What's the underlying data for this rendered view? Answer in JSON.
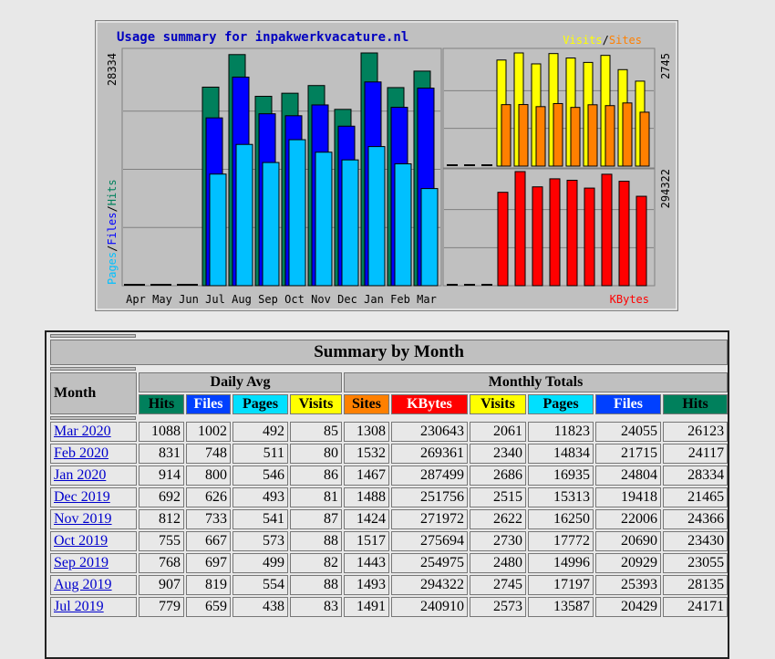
{
  "graph": {
    "title": "Usage summary for inpakwerkvacature.nl",
    "left_axis_label": "28334",
    "right_top_axis_label": "2745",
    "right_bottom_axis_label": "294322",
    "legend_left": [
      "Pages",
      "/",
      "Files",
      "/",
      "Hits"
    ],
    "legend_top_right": [
      "Visits",
      "/",
      "Sites"
    ],
    "legend_bottom_right": "KBytes",
    "colors": {
      "hits": "#00805c",
      "files": "#0000ff",
      "pages": "#00c0ff",
      "visits": "#ffff00",
      "sites": "#ff8000",
      "kbytes": "#ff0000",
      "bg": "#c0c0c0",
      "frame": "#808080"
    }
  },
  "chart_data": {
    "type": "bar",
    "categories": [
      "Apr",
      "May",
      "Jun",
      "Jul",
      "Aug",
      "Sep",
      "Oct",
      "Nov",
      "Dec",
      "Jan",
      "Feb",
      "Mar"
    ],
    "series": [
      {
        "name": "Hits",
        "values": [
          0,
          0,
          0,
          24171,
          28135,
          23055,
          23430,
          24366,
          21465,
          28334,
          24117,
          26123
        ]
      },
      {
        "name": "Files",
        "values": [
          0,
          0,
          0,
          20429,
          25393,
          20929,
          20690,
          22006,
          19418,
          24804,
          21715,
          24055
        ]
      },
      {
        "name": "Pages",
        "values": [
          0,
          0,
          0,
          13587,
          17197,
          14996,
          17772,
          16250,
          15313,
          16935,
          14834,
          11823
        ]
      },
      {
        "name": "Visits",
        "values": [
          0,
          0,
          0,
          2573,
          2745,
          2480,
          2730,
          2622,
          2515,
          2686,
          2340,
          2061
        ]
      },
      {
        "name": "Sites",
        "values": [
          0,
          0,
          0,
          1491,
          1493,
          1443,
          1517,
          1424,
          1488,
          1467,
          1532,
          1308
        ]
      },
      {
        "name": "KBytes",
        "values": [
          0,
          0,
          0,
          240910,
          294322,
          254975,
          275694,
          271972,
          251756,
          287499,
          269361,
          230643
        ]
      }
    ]
  },
  "summary": {
    "title": "Summary by Month",
    "month_header": "Month",
    "daily_avg_header": "Daily Avg",
    "monthly_totals_header": "Monthly Totals",
    "daily_cols": [
      "Hits",
      "Files",
      "Pages",
      "Visits"
    ],
    "monthly_cols": [
      "Sites",
      "KBytes",
      "Visits",
      "Pages",
      "Files",
      "Hits"
    ],
    "rows": [
      {
        "month": "Mar 2020",
        "d_hits": "1088",
        "d_files": "1002",
        "d_pages": "492",
        "d_visits": "85",
        "sites": "1308",
        "kbytes": "230643",
        "visits": "2061",
        "pages": "11823",
        "files": "24055",
        "hits": "26123"
      },
      {
        "month": "Feb 2020",
        "d_hits": "831",
        "d_files": "748",
        "d_pages": "511",
        "d_visits": "80",
        "sites": "1532",
        "kbytes": "269361",
        "visits": "2340",
        "pages": "14834",
        "files": "21715",
        "hits": "24117"
      },
      {
        "month": "Jan 2020",
        "d_hits": "914",
        "d_files": "800",
        "d_pages": "546",
        "d_visits": "86",
        "sites": "1467",
        "kbytes": "287499",
        "visits": "2686",
        "pages": "16935",
        "files": "24804",
        "hits": "28334"
      },
      {
        "month": "Dec 2019",
        "d_hits": "692",
        "d_files": "626",
        "d_pages": "493",
        "d_visits": "81",
        "sites": "1488",
        "kbytes": "251756",
        "visits": "2515",
        "pages": "15313",
        "files": "19418",
        "hits": "21465"
      },
      {
        "month": "Nov 2019",
        "d_hits": "812",
        "d_files": "733",
        "d_pages": "541",
        "d_visits": "87",
        "sites": "1424",
        "kbytes": "271972",
        "visits": "2622",
        "pages": "16250",
        "files": "22006",
        "hits": "24366"
      },
      {
        "month": "Oct 2019",
        "d_hits": "755",
        "d_files": "667",
        "d_pages": "573",
        "d_visits": "88",
        "sites": "1517",
        "kbytes": "275694",
        "visits": "2730",
        "pages": "17772",
        "files": "20690",
        "hits": "23430"
      },
      {
        "month": "Sep 2019",
        "d_hits": "768",
        "d_files": "697",
        "d_pages": "499",
        "d_visits": "82",
        "sites": "1443",
        "kbytes": "254975",
        "visits": "2480",
        "pages": "14996",
        "files": "20929",
        "hits": "23055"
      },
      {
        "month": "Aug 2019",
        "d_hits": "907",
        "d_files": "819",
        "d_pages": "554",
        "d_visits": "88",
        "sites": "1493",
        "kbytes": "294322",
        "visits": "2745",
        "pages": "17197",
        "files": "25393",
        "hits": "28135"
      },
      {
        "month": "Jul 2019",
        "d_hits": "779",
        "d_files": "659",
        "d_pages": "438",
        "d_visits": "83",
        "sites": "1491",
        "kbytes": "240910",
        "visits": "2573",
        "pages": "13587",
        "files": "20429",
        "hits": "24171"
      }
    ]
  }
}
